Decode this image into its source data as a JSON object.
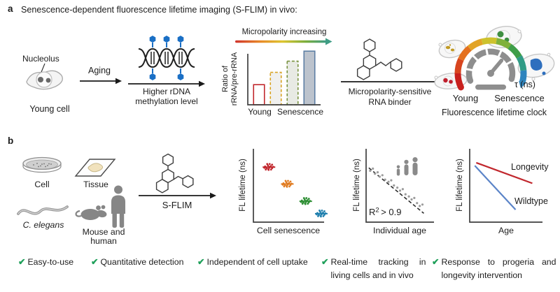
{
  "figure": {
    "panel_a_label": "a",
    "panel_a_title": "Senescence-dependent fluorescence lifetime imaging (S-FLIM) in vivo:",
    "panel_b_label": "b"
  },
  "panel_a": {
    "young_cell": {
      "pointer_label": "Nucleolus",
      "caption": "Young cell"
    },
    "aging_arrow_label": "Aging",
    "dna_caption_line1": "Higher rDNA",
    "dna_caption_line2": "methylation level",
    "dna_methyl_color": "#1a6fc5",
    "binder_arrow": {
      "line1": "Micropolarity-sensitive",
      "line2": "RNA binder"
    },
    "clock": {
      "tau_label": "τ (ns)",
      "young_label": "Young",
      "senescence_label": "Senescence",
      "caption": "Fluorescence lifetime clock",
      "young_color": "#c1272d",
      "senescence_color": "#5b87cd",
      "arc_colors": [
        "#c8201d",
        "#d8451f",
        "#e4711f",
        "#e2a426",
        "#cdc22d",
        "#7fb13a",
        "#3f9e49",
        "#2f9b85",
        "#2e84bd"
      ]
    }
  },
  "panel_b": {
    "samples": {
      "cell": "Cell",
      "tissue": "Tissue",
      "worm": "C. elegans",
      "mouse_human_line1": "Mouse and",
      "mouse_human_line2": "human"
    },
    "sflim_label": "S-FLIM"
  },
  "features": {
    "check_icon": "✔",
    "check_color": "#1fa05a",
    "items": [
      {
        "label": "Easy-to-use"
      },
      {
        "label": "Quantitative detection"
      },
      {
        "label": "Independent of cell uptake"
      },
      {
        "label": "Real-time tracking in living cells and in vivo"
      },
      {
        "label": "Response to progeria and longevity intervention"
      }
    ]
  },
  "chart_data": [
    {
      "id": "rrna-ratio-bar-chart",
      "type": "bar",
      "title": "Micropolarity increasing",
      "ylabel": "Ratio of rRNA/pre-rRNA",
      "ylabel_line1": "Ratio of",
      "ylabel_line2": "rRNA/pre-rRNA",
      "x_axis_labels": [
        "Young",
        "Senescence"
      ],
      "values": [
        0.36,
        0.58,
        0.78,
        0.96
      ],
      "ylim": [
        0,
        1
      ],
      "bars": [
        {
          "value": 0.36,
          "stroke": "#c1272d",
          "fill": "#ffffff",
          "dashed": false
        },
        {
          "value": 0.58,
          "stroke": "#d8a324",
          "fill": "#f0f0ee",
          "dashed": true
        },
        {
          "value": 0.78,
          "stroke": "#78923f",
          "fill": "#e8eae4",
          "dashed": true
        },
        {
          "value": 0.96,
          "stroke": "#5d7fa4",
          "fill": "#bcc3cd",
          "dashed": false
        }
      ],
      "gradient_colors": [
        "#d0342c",
        "#e88a28",
        "#ddc52f",
        "#79ad3d",
        "#3f9d85"
      ]
    },
    {
      "id": "cell-senescence-plot",
      "type": "scatter",
      "xlabel": "Cell senescence",
      "ylabel": "FL lifetime (ns)",
      "clusters": [
        {
          "color": "#c1272d",
          "x": 0.22,
          "y": 0.75
        },
        {
          "color": "#e07b20",
          "x": 0.48,
          "y": 0.52
        },
        {
          "color": "#2f8f35",
          "x": 0.74,
          "y": 0.285
        },
        {
          "color": "#1f7fae",
          "x": 0.96,
          "y": 0.115
        }
      ]
    },
    {
      "id": "individual-age-plot",
      "type": "scatter",
      "xlabel": "Individual age",
      "ylabel": "FL lifetime (ns)",
      "annotation": "R² > 0.9",
      "annotation_parts": {
        "base": "R",
        "sup": "2",
        "rest": "> 0.9"
      },
      "trend": {
        "x1": 0.04,
        "y1": 0.74,
        "x2": 0.85,
        "y2": 0.12
      },
      "points": [
        [
          0.06,
          0.7
        ],
        [
          0.1,
          0.73
        ],
        [
          0.13,
          0.66
        ],
        [
          0.17,
          0.68
        ],
        [
          0.2,
          0.62
        ],
        [
          0.24,
          0.64
        ],
        [
          0.28,
          0.58
        ],
        [
          0.33,
          0.55
        ],
        [
          0.37,
          0.57
        ],
        [
          0.41,
          0.5
        ],
        [
          0.46,
          0.47
        ],
        [
          0.5,
          0.43
        ],
        [
          0.54,
          0.45
        ],
        [
          0.58,
          0.38
        ],
        [
          0.63,
          0.35
        ],
        [
          0.67,
          0.31
        ],
        [
          0.71,
          0.33
        ],
        [
          0.75,
          0.26
        ],
        [
          0.79,
          0.22
        ],
        [
          0.83,
          0.24
        ]
      ]
    },
    {
      "id": "age-lines-plot",
      "type": "line",
      "xlabel": "Age",
      "ylabel": "FL lifetime (ns)",
      "series": [
        {
          "name": "Longevity",
          "color": "#c1272d",
          "points": [
            [
              0.09,
              0.81
            ],
            [
              0.86,
              0.53
            ]
          ]
        },
        {
          "name": "Wildtype",
          "color": "#5b84c8",
          "points": [
            [
              0.07,
              0.77
            ],
            [
              0.63,
              0.17
            ]
          ]
        }
      ]
    }
  ]
}
